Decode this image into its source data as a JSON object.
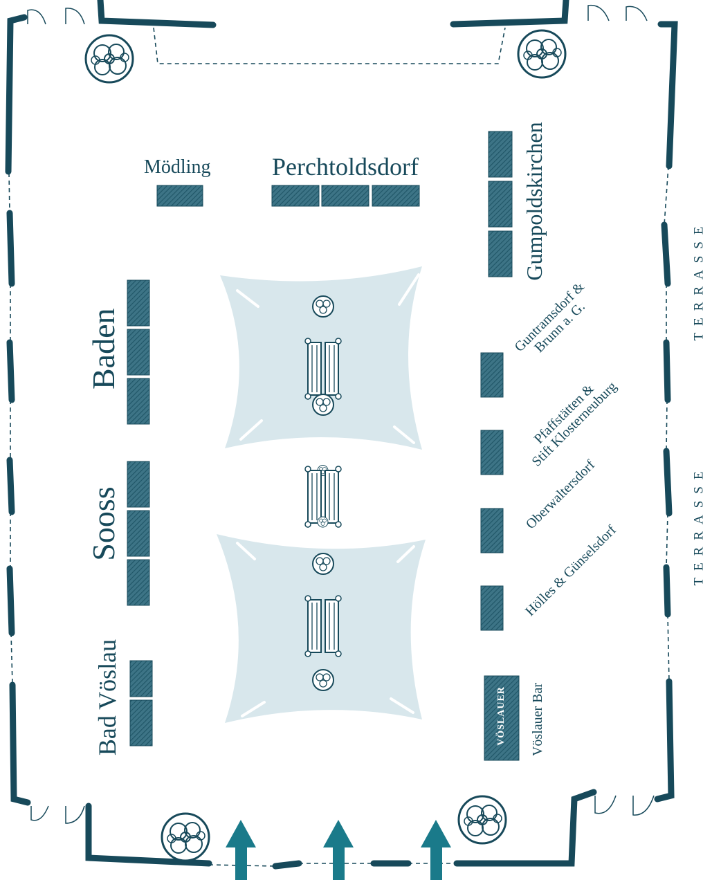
{
  "colors": {
    "ink": "#17495a",
    "stand": "#2e6375",
    "tent": "#d8e7ec",
    "arrow": "#1a7a8a"
  },
  "labels": {
    "moedling": "Mödling",
    "perchtoldsdorf": "Perchtoldsdorf",
    "gumpoldskirchen": "Gumpoldskirchen",
    "baden": "Baden",
    "sooss": "Sooss",
    "bad_voeslau": "Bad Vöslau",
    "guntramsdorf": "Guntramsdorf &",
    "guntramsdorf_2": "Brunn a. G.",
    "pfaffstaetten": "Pfaffstätten &",
    "pfaffstaetten_2": "Stift Klosterneuburg",
    "oberwaltersdorf": "Oberwaltersdorf",
    "hoelles": "Hölles & Günselsdorf",
    "voeslauer_bar": "Vöslauer Bar",
    "bar_logo": "VÖSLAUER",
    "terrasse_top": "TERRASSE",
    "terrasse_bottom": "TERRASSE"
  },
  "icons": {
    "tree": "tree-icon",
    "bench": "bench-icon",
    "door": "door-icon",
    "entrance_arrow": "arrow-up-icon"
  }
}
